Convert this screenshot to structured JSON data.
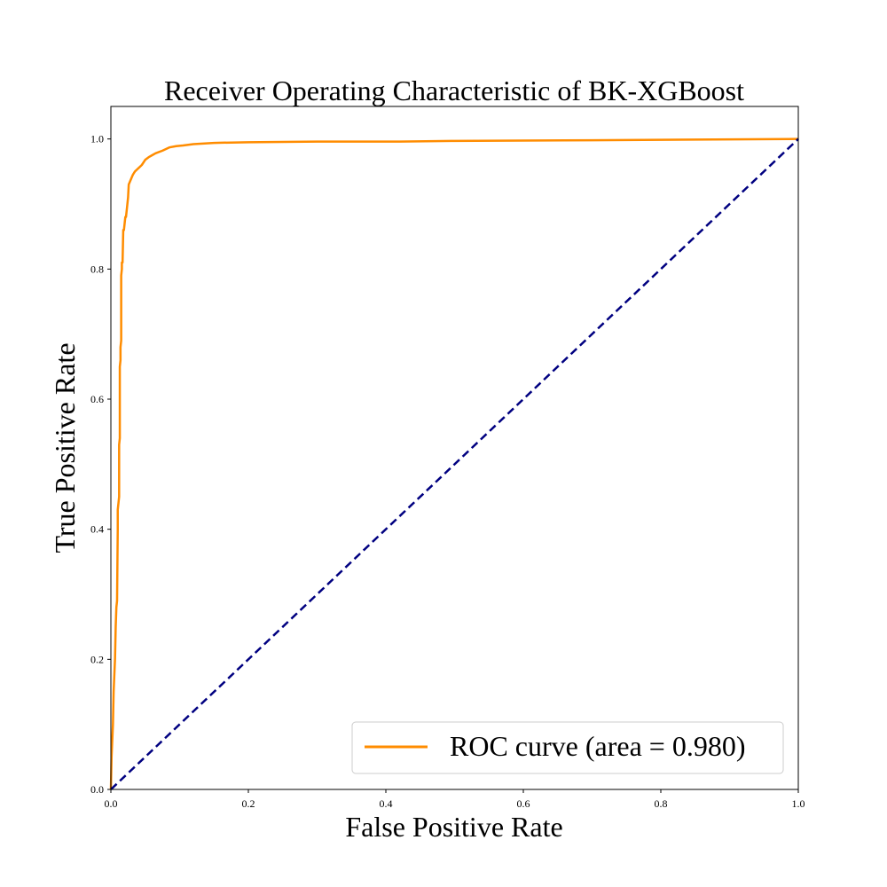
{
  "chart_data": {
    "type": "line",
    "title": "Receiver Operating Characteristic of BK-XGBoost",
    "xlabel": "False Positive Rate",
    "ylabel": "True Positive Rate",
    "xlim": [
      0.0,
      1.0
    ],
    "ylim": [
      0.0,
      1.05
    ],
    "x_ticks": [
      "0.0",
      "0.2",
      "0.4",
      "0.6",
      "0.8",
      "1.0"
    ],
    "y_ticks": [
      "0.0",
      "0.2",
      "0.4",
      "0.6",
      "0.8",
      "1.0"
    ],
    "grid": false,
    "legend_position": "lower-right",
    "series": [
      {
        "name": "ROC curve (area = 0.980)",
        "color": "#ff8c00",
        "style": "solid",
        "x": [
          0.0,
          0.001,
          0.003,
          0.004,
          0.006,
          0.007,
          0.008,
          0.009,
          0.01,
          0.01,
          0.011,
          0.012,
          0.012,
          0.013,
          0.013,
          0.014,
          0.014,
          0.015,
          0.015,
          0.016,
          0.016,
          0.017,
          0.018,
          0.019,
          0.02,
          0.021,
          0.022,
          0.025,
          0.026,
          0.03,
          0.032,
          0.035,
          0.038,
          0.04,
          0.045,
          0.05,
          0.055,
          0.06,
          0.065,
          0.075,
          0.085,
          0.095,
          0.105,
          0.12,
          0.15,
          0.2,
          0.3,
          0.42,
          0.5,
          0.7,
          0.85,
          1.0
        ],
        "y": [
          0.0,
          0.05,
          0.1,
          0.15,
          0.2,
          0.25,
          0.28,
          0.29,
          0.4,
          0.43,
          0.44,
          0.45,
          0.53,
          0.54,
          0.65,
          0.66,
          0.68,
          0.69,
          0.79,
          0.8,
          0.81,
          0.81,
          0.86,
          0.86,
          0.87,
          0.88,
          0.88,
          0.91,
          0.93,
          0.94,
          0.945,
          0.95,
          0.953,
          0.955,
          0.96,
          0.968,
          0.972,
          0.975,
          0.978,
          0.982,
          0.987,
          0.989,
          0.99,
          0.992,
          0.994,
          0.995,
          0.996,
          0.996,
          0.997,
          0.998,
          0.999,
          1.0
        ]
      },
      {
        "name": "",
        "color": "#000080",
        "style": "dashed",
        "x": [
          0.0,
          1.0
        ],
        "y": [
          0.0,
          1.0
        ]
      }
    ]
  }
}
